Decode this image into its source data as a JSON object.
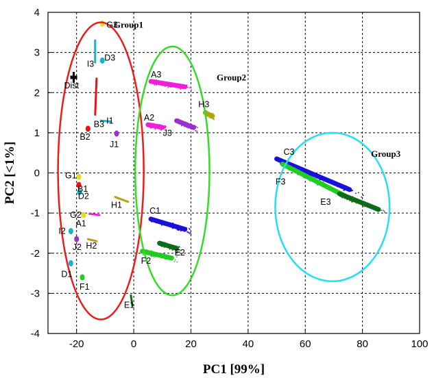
{
  "chart_data": {
    "type": "scatter",
    "title": "",
    "xlabel": "PC1 [99%]",
    "ylabel": "PC2 [<1%]",
    "xlim": [
      -30,
      100
    ],
    "ylim": [
      -4,
      4
    ],
    "xticks": [
      -20,
      0,
      20,
      40,
      60,
      80,
      100
    ],
    "yticks": [
      -4,
      -3,
      -2,
      -1,
      0,
      1,
      2,
      3,
      4
    ],
    "grid": true,
    "clusters": [
      {
        "label": "G3",
        "color": "#e6dc1e",
        "shape": "blob",
        "x": [
          -11
        ],
        "y": [
          3.72
        ]
      },
      {
        "label": "I3",
        "color": "#1ab2c8",
        "shape": "vline",
        "x": [
          -13.5,
          -13.5
        ],
        "y": [
          2.75,
          3.3
        ]
      },
      {
        "label": "D3",
        "color": "#1ab2c8",
        "shape": "blob",
        "x": [
          -11
        ],
        "y": [
          2.8
        ]
      },
      {
        "label": "Dist",
        "color": "#000000",
        "shape": "cross",
        "x": [
          -21
        ],
        "y": [
          2.38
        ]
      },
      {
        "label": "B3",
        "color": "#ee1111",
        "shape": "vline",
        "x": [
          -13.5,
          -13
        ],
        "y": [
          1.45,
          2.35
        ]
      },
      {
        "label": "I1",
        "color": "#1ab2c8",
        "shape": "hline",
        "x": [
          -11.5,
          -8
        ],
        "y": [
          1.3,
          1.28
        ]
      },
      {
        "label": "B2",
        "color": "#ee1111",
        "shape": "blob",
        "x": [
          -16
        ],
        "y": [
          1.1
        ]
      },
      {
        "label": "J1",
        "color": "#9b2fcf",
        "shape": "blob",
        "x": [
          -6
        ],
        "y": [
          0.98
        ]
      },
      {
        "label": "G1",
        "color": "#e6dc1e",
        "shape": "blob",
        "x": [
          -19.2
        ],
        "y": [
          -0.1
        ]
      },
      {
        "label": "B1",
        "color": "#ee1111",
        "shape": "blob",
        "x": [
          -19.2
        ],
        "y": [
          -0.3
        ]
      },
      {
        "label": "D2",
        "color": "#1ab2c8",
        "shape": "blob",
        "x": [
          -19
        ],
        "y": [
          -0.48
        ]
      },
      {
        "label": "H1",
        "color": "#b2a414",
        "shape": "hline",
        "x": [
          -6.5,
          -2
        ],
        "y": [
          -0.6,
          -0.72
        ]
      },
      {
        "label": "G2",
        "color": "#e6dc1e",
        "shape": "blob",
        "x": [
          -17.5
        ],
        "y": [
          -1.05
        ]
      },
      {
        "label": "A1",
        "color": "#ef1fdc",
        "shape": "hline",
        "x": [
          -15.5,
          -12
        ],
        "y": [
          -1.02,
          -1.05
        ]
      },
      {
        "label": "I2",
        "color": "#1ab2c8",
        "shape": "blob",
        "x": [
          -22
        ],
        "y": [
          -1.45
        ]
      },
      {
        "label": "J2",
        "color": "#9b2fcf",
        "shape": "blob",
        "x": [
          -20
        ],
        "y": [
          -1.65
        ]
      },
      {
        "label": "H2",
        "color": "#b2a414",
        "shape": "hline",
        "x": [
          -16,
          -13
        ],
        "y": [
          -1.65,
          -1.7
        ]
      },
      {
        "label": "D1",
        "color": "#1ab2c8",
        "shape": "blob",
        "x": [
          -22
        ],
        "y": [
          -2.25
        ]
      },
      {
        "label": "F1",
        "color": "#22cc22",
        "shape": "blob",
        "x": [
          -18
        ],
        "y": [
          -2.6
        ]
      },
      {
        "label": "E1",
        "color": "#0f6b1a",
        "shape": "vline",
        "x": [
          -1,
          -0.5
        ],
        "y": [
          -3.05,
          -3.3
        ]
      },
      {
        "label": "A3",
        "color": "#ef1fdc",
        "shape": "band",
        "x": [
          6,
          20
        ],
        "y": [
          2.28,
          2.12
        ]
      },
      {
        "label": "A2",
        "color": "#ef1fdc",
        "shape": "band",
        "x": [
          5,
          11
        ],
        "y": [
          1.2,
          1.12
        ]
      },
      {
        "label": "J3",
        "color": "#9b2fcf",
        "shape": "band",
        "x": [
          15,
          22
        ],
        "y": [
          1.3,
          1.1
        ]
      },
      {
        "label": "H3",
        "color": "#b2a414",
        "shape": "band",
        "x": [
          25,
          28
        ],
        "y": [
          1.5,
          1.4
        ]
      },
      {
        "label": "C1",
        "color": "#1a10dd",
        "shape": "band",
        "x": [
          6,
          20
        ],
        "y": [
          -1.15,
          -1.45
        ]
      },
      {
        "label": "E2",
        "color": "#0f6b1a",
        "shape": "band",
        "x": [
          9,
          16
        ],
        "y": [
          -1.75,
          -1.9
        ]
      },
      {
        "label": "F2",
        "color": "#22cc22",
        "shape": "band",
        "x": [
          3,
          15
        ],
        "y": [
          -1.95,
          -2.15
        ]
      },
      {
        "label": "C3",
        "color": "#1a10dd",
        "shape": "band",
        "x": [
          50,
          80
        ],
        "y": [
          0.35,
          -0.55
        ]
      },
      {
        "label": "F3",
        "color": "#22cc22",
        "shape": "band",
        "x": [
          52,
          78
        ],
        "y": [
          0.22,
          -0.72
        ]
      },
      {
        "label": "E3",
        "color": "#0f6b1a",
        "shape": "band",
        "x": [
          72,
          88
        ],
        "y": [
          -0.52,
          -0.98
        ]
      }
    ],
    "groups": [
      {
        "name": "Group1",
        "color": "#ee1b1b",
        "cx": -11.5,
        "cy": 0.05,
        "rx": 15,
        "ry": 3.7
      },
      {
        "name": "Group2",
        "color": "#33dd22",
        "cx": 13.5,
        "cy": 0.05,
        "rx": 13,
        "ry": 3.1
      },
      {
        "name": "Group3",
        "color": "#22e0ee",
        "cx": 69.5,
        "cy": -0.85,
        "rx": 20,
        "ry": 1.85,
        "angle": 0
      }
    ]
  }
}
